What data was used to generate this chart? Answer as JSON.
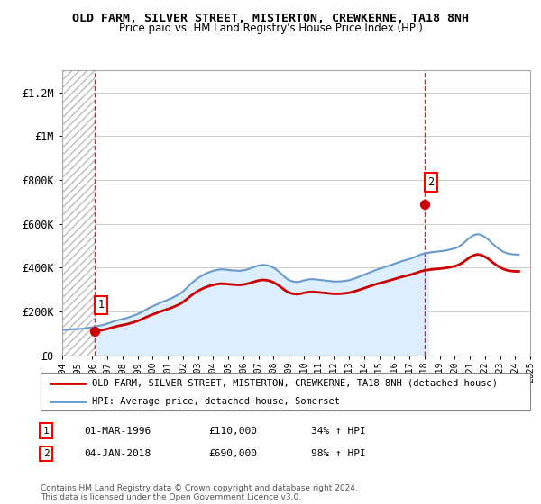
{
  "title": "OLD FARM, SILVER STREET, MISTERTON, CREWKERNE, TA18 8NH",
  "subtitle": "Price paid vs. HM Land Registry's House Price Index (HPI)",
  "ylim": [
    0,
    1300000
  ],
  "yticks": [
    0,
    200000,
    400000,
    600000,
    800000,
    1000000,
    1200000
  ],
  "ytick_labels": [
    "£0",
    "£200K",
    "£400K",
    "£600K",
    "£800K",
    "£1M",
    "£1.2M"
  ],
  "xmin_year": 1994,
  "xmax_year": 2025,
  "sale1_year": 1996.17,
  "sale1_price": 110000,
  "sale1_label": "1",
  "sale1_date": "01-MAR-1996",
  "sale1_hpi": "34% ↑ HPI",
  "sale2_year": 2018.02,
  "sale2_price": 690000,
  "sale2_label": "2",
  "sale2_date": "04-JAN-2018",
  "sale2_hpi": "98% ↑ HPI",
  "property_color": "#cc0000",
  "hpi_color": "#6699cc",
  "legend_property": "OLD FARM, SILVER STREET, MISTERTON, CREWKERNE, TA18 8NH (detached house)",
  "legend_hpi": "HPI: Average price, detached house, Somerset",
  "footnote": "Contains HM Land Registry data © Crown copyright and database right 2024.\nThis data is licensed under the Open Government Licence v3.0.",
  "hpi_data_years": [
    1994.0,
    1994.25,
    1994.5,
    1994.75,
    1995.0,
    1995.25,
    1995.5,
    1995.75,
    1996.0,
    1996.25,
    1996.5,
    1996.75,
    1997.0,
    1997.25,
    1997.5,
    1997.75,
    1998.0,
    1998.25,
    1998.5,
    1998.75,
    1999.0,
    1999.25,
    1999.5,
    1999.75,
    2000.0,
    2000.25,
    2000.5,
    2000.75,
    2001.0,
    2001.25,
    2001.5,
    2001.75,
    2002.0,
    2002.25,
    2002.5,
    2002.75,
    2003.0,
    2003.25,
    2003.5,
    2003.75,
    2004.0,
    2004.25,
    2004.5,
    2004.75,
    2005.0,
    2005.25,
    2005.5,
    2005.75,
    2006.0,
    2006.25,
    2006.5,
    2006.75,
    2007.0,
    2007.25,
    2007.5,
    2007.75,
    2008.0,
    2008.25,
    2008.5,
    2008.75,
    2009.0,
    2009.25,
    2009.5,
    2009.75,
    2010.0,
    2010.25,
    2010.5,
    2010.75,
    2011.0,
    2011.25,
    2011.5,
    2011.75,
    2012.0,
    2012.25,
    2012.5,
    2012.75,
    2013.0,
    2013.25,
    2013.5,
    2013.75,
    2014.0,
    2014.25,
    2014.5,
    2014.75,
    2015.0,
    2015.25,
    2015.5,
    2015.75,
    2016.0,
    2016.25,
    2016.5,
    2016.75,
    2017.0,
    2017.25,
    2017.5,
    2017.75,
    2018.0,
    2018.25,
    2018.5,
    2018.75,
    2019.0,
    2019.25,
    2019.5,
    2019.75,
    2020.0,
    2020.25,
    2020.5,
    2020.75,
    2021.0,
    2021.25,
    2021.5,
    2021.75,
    2022.0,
    2022.25,
    2022.5,
    2022.75,
    2023.0,
    2023.25,
    2023.5,
    2023.75,
    2024.0,
    2024.25,
    2024.5
  ],
  "hpi_data_values": [
    116000,
    117000,
    118000,
    119500,
    120000,
    121000,
    123000,
    126000,
    128000,
    132000,
    136000,
    140000,
    145000,
    151000,
    157000,
    162000,
    166000,
    170000,
    176000,
    182000,
    189000,
    197000,
    207000,
    216000,
    224000,
    232000,
    240000,
    247000,
    254000,
    261000,
    270000,
    279000,
    292000,
    308000,
    325000,
    340000,
    353000,
    364000,
    373000,
    380000,
    386000,
    390000,
    393000,
    392000,
    390000,
    388000,
    387000,
    386000,
    388000,
    392000,
    398000,
    404000,
    410000,
    413000,
    412000,
    408000,
    400000,
    388000,
    373000,
    357000,
    344000,
    338000,
    335000,
    337000,
    342000,
    346000,
    348000,
    347000,
    345000,
    343000,
    341000,
    339000,
    337000,
    337000,
    338000,
    340000,
    343000,
    348000,
    354000,
    361000,
    368000,
    375000,
    382000,
    389000,
    395000,
    400000,
    406000,
    412000,
    418000,
    424000,
    430000,
    435000,
    440000,
    446000,
    453000,
    460000,
    465000,
    468000,
    471000,
    473000,
    475000,
    477000,
    480000,
    484000,
    488000,
    495000,
    507000,
    522000,
    537000,
    548000,
    553000,
    550000,
    540000,
    527000,
    510000,
    495000,
    482000,
    472000,
    465000,
    462000,
    460000,
    460000
  ],
  "xtick_years": [
    1994,
    1995,
    1996,
    1997,
    1998,
    1999,
    2000,
    2001,
    2002,
    2003,
    2004,
    2005,
    2006,
    2007,
    2008,
    2009,
    2010,
    2011,
    2012,
    2013,
    2014,
    2015,
    2016,
    2017,
    2018,
    2019,
    2020,
    2021,
    2022,
    2023,
    2024,
    2025
  ]
}
